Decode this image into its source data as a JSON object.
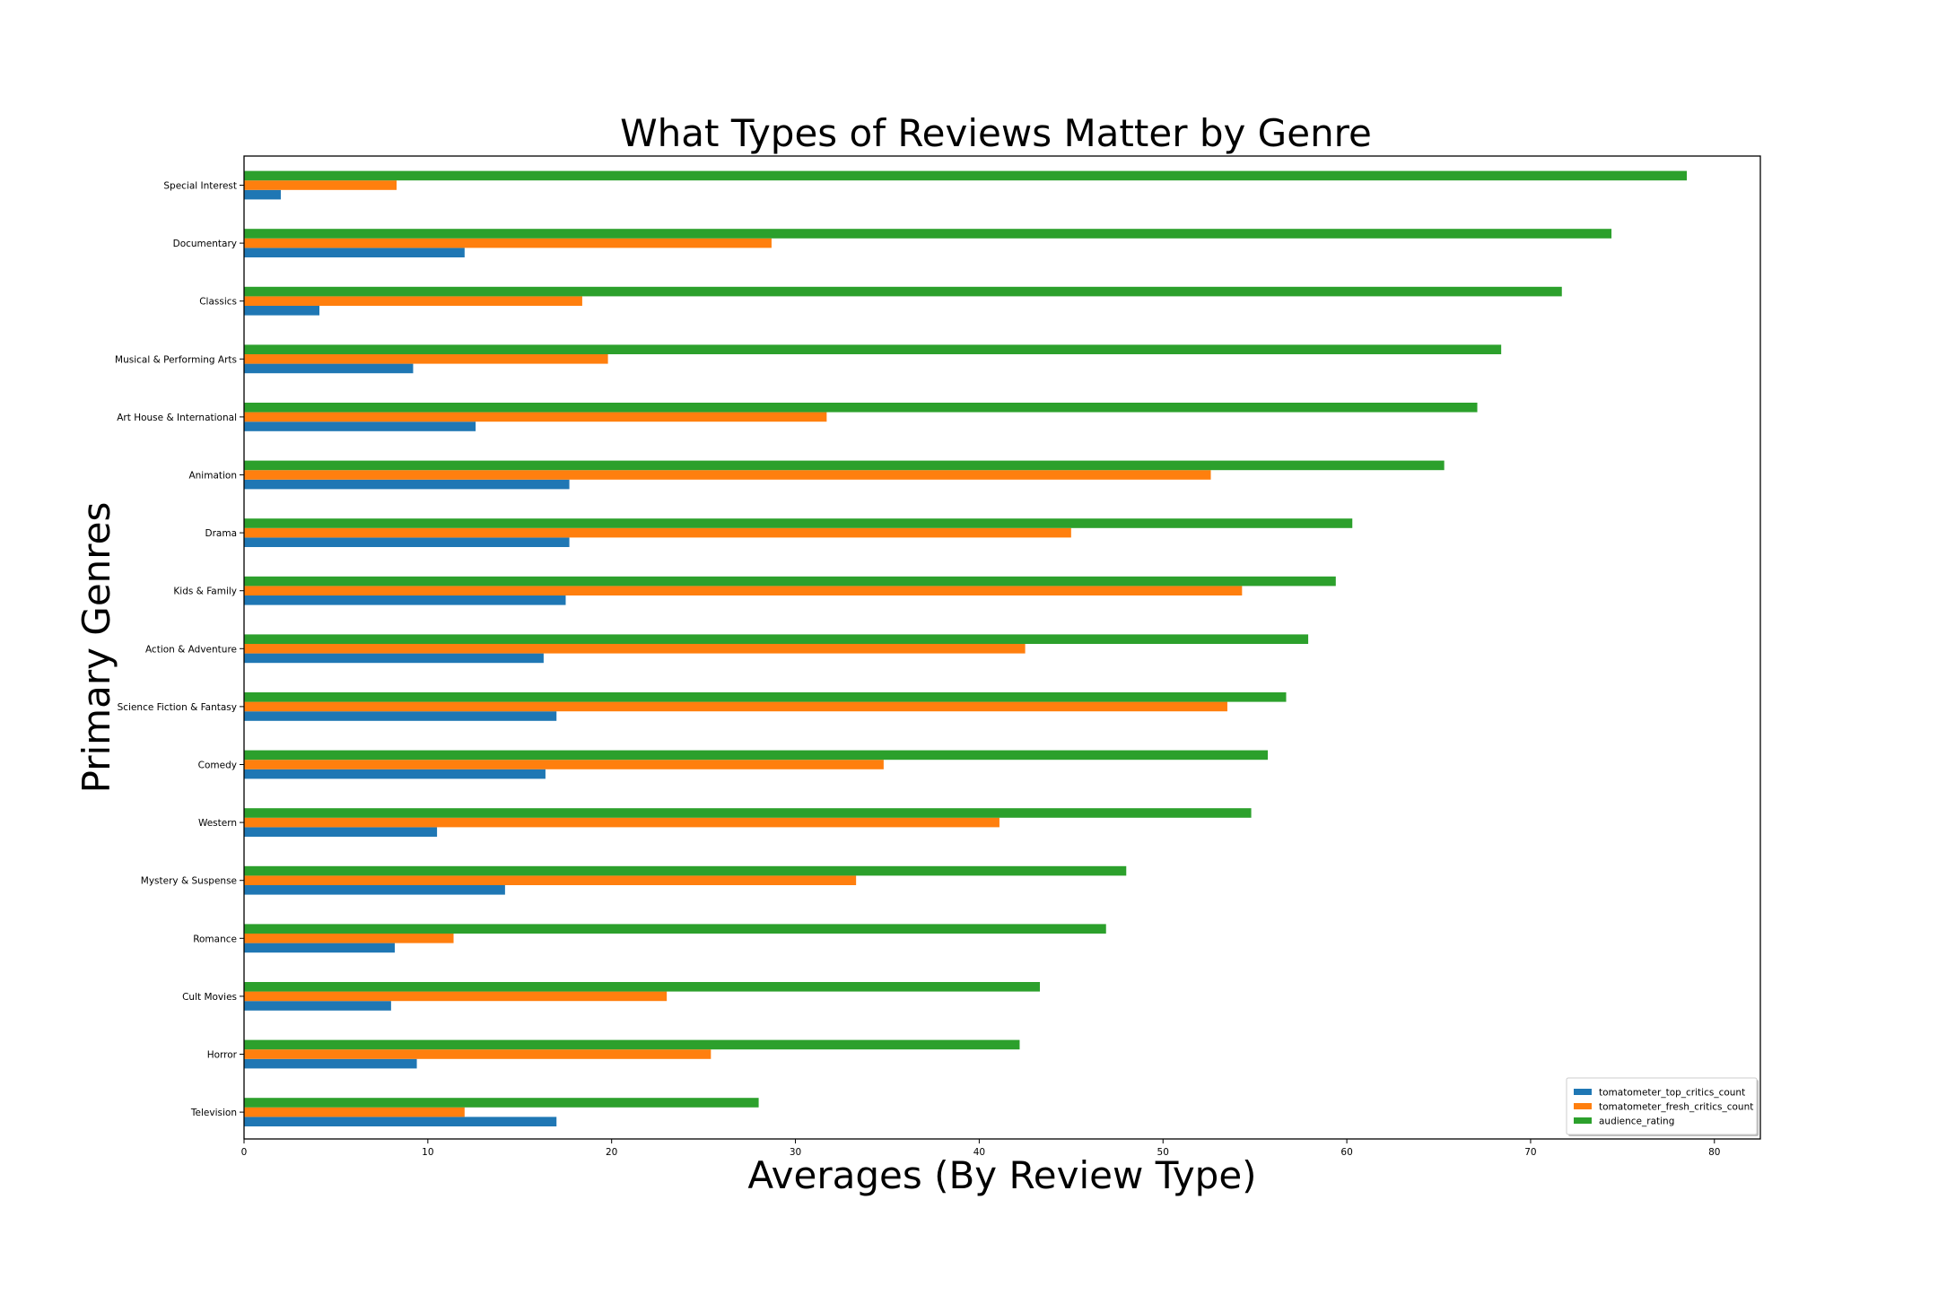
{
  "chart_data": {
    "type": "bar",
    "orientation": "horizontal",
    "title": "What Types of Reviews Matter by Genre",
    "xlabel": "Averages (By Review Type)",
    "ylabel": "Primary Genres",
    "xlim": [
      0,
      82.5
    ],
    "xticks": [
      0,
      10,
      20,
      30,
      40,
      50,
      60,
      70,
      80
    ],
    "grid": false,
    "legend_position": "bottom-right",
    "categories": [
      "Special Interest",
      "Documentary",
      "Classics",
      "Musical & Performing Arts",
      "Art House & International",
      "Animation",
      "Drama",
      "Kids & Family",
      "Action & Adventure",
      "Science Fiction & Fantasy",
      "Comedy",
      "Western",
      "Mystery & Suspense",
      "Romance",
      "Cult Movies",
      "Horror",
      "Television"
    ],
    "series": [
      {
        "name": "tomatometer_top_critics_count",
        "color": "#1f77b4",
        "values": [
          2.0,
          12.0,
          4.1,
          9.2,
          12.6,
          17.7,
          17.7,
          17.5,
          16.3,
          17.0,
          16.4,
          10.5,
          14.2,
          8.2,
          8.0,
          9.4,
          17.0
        ]
      },
      {
        "name": "tomatometer_fresh_critics_count",
        "color": "#ff7f0e",
        "values": [
          8.3,
          28.7,
          18.4,
          19.8,
          31.7,
          52.6,
          45.0,
          54.3,
          42.5,
          53.5,
          34.8,
          41.1,
          33.3,
          11.4,
          23.0,
          25.4,
          12.0
        ]
      },
      {
        "name": "audience_rating",
        "color": "#2ca02c",
        "values": [
          78.5,
          74.4,
          71.7,
          68.4,
          67.1,
          65.3,
          60.3,
          59.4,
          57.9,
          56.7,
          55.7,
          54.8,
          48.0,
          46.9,
          43.3,
          42.2,
          28.0
        ]
      }
    ]
  }
}
